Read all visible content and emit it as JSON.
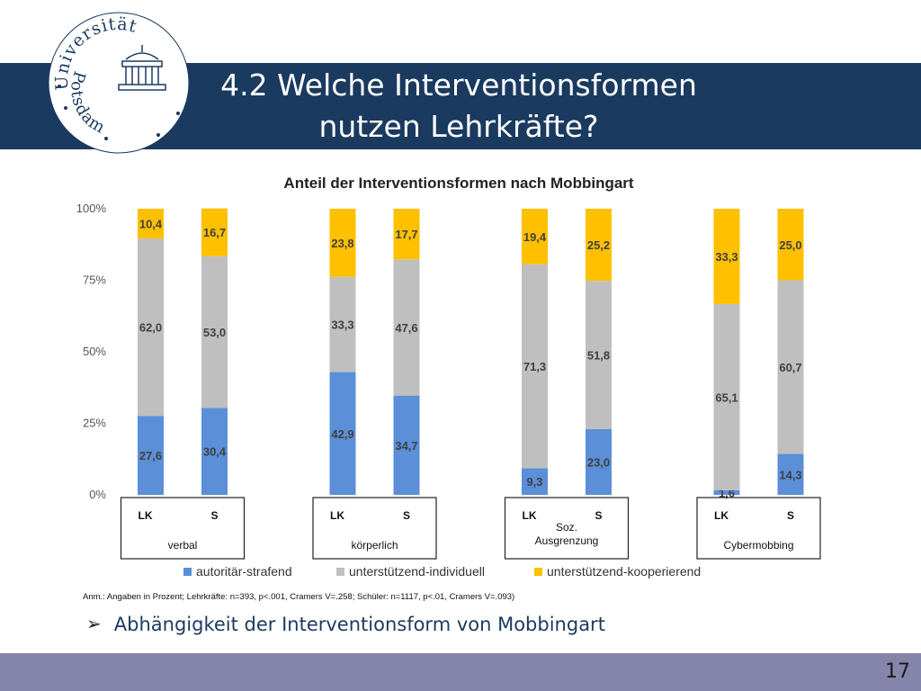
{
  "slide": {
    "title_line1": "4.2 Welche Interventionsformen",
    "title_line2": "nutzen Lehrkräfte?",
    "bullet": "Abhängigkeit der Interventionsform von Mobbingart",
    "page_number": "17",
    "logo_text_top": "Universität",
    "logo_text_bottom": "Potsdam"
  },
  "colors": {
    "title_bar": "#1b3a5f",
    "footer_bar": "#8584ab",
    "autoritaer": "#5b8fd8",
    "individuell": "#bfbfbf",
    "kooperierend": "#ffc000"
  },
  "chart_data": {
    "type": "bar",
    "stacked": true,
    "title": "Anteil der Interventionsformen nach Mobbingart",
    "ylim": [
      0,
      100
    ],
    "y_ticks": [
      "0%",
      "25%",
      "50%",
      "75%",
      "100%"
    ],
    "groups": [
      {
        "name": "verbal",
        "categories": [
          "LK",
          "S"
        ]
      },
      {
        "name": "körperlich",
        "categories": [
          "LK",
          "S"
        ]
      },
      {
        "name": "Soz. Ausgrenzung",
        "categories": [
          "LK",
          "S"
        ]
      },
      {
        "name": "Cybermobbing",
        "categories": [
          "LK",
          "S"
        ]
      }
    ],
    "series": [
      {
        "name": "autoritär-strafend",
        "color": "#5b8fd8",
        "values": [
          27.6,
          30.4,
          42.9,
          34.7,
          9.3,
          23.0,
          1.6,
          14.3
        ],
        "labels": [
          "27,6",
          "30,4",
          "42,9",
          "34,7",
          "9,3",
          "23,0",
          "1,6",
          "14,3"
        ]
      },
      {
        "name": "unterstützend-individuell",
        "color": "#bfbfbf",
        "values": [
          62.0,
          53.0,
          33.3,
          47.6,
          71.3,
          51.8,
          65.1,
          60.7
        ],
        "labels": [
          "62,0",
          "53,0",
          "33,3",
          "47,6",
          "71,3",
          "51,8",
          "65,1",
          "60,7"
        ]
      },
      {
        "name": "unterstützend-kooperierend",
        "color": "#ffc000",
        "values": [
          10.4,
          16.7,
          23.8,
          17.7,
          19.4,
          25.2,
          33.3,
          25.0
        ],
        "labels": [
          "10,4",
          "16,7",
          "23,8",
          "17,7",
          "19,4",
          "25,2",
          "33,3",
          "25,0"
        ]
      }
    ],
    "legend_position": "bottom",
    "grid": false,
    "note": "Anm.: Angaben in Prozent; Lehrkräfte: n=393, p<.001, Cramers V=.258; Schüler: n=1117, p<.01, Cramers V=.093)"
  }
}
